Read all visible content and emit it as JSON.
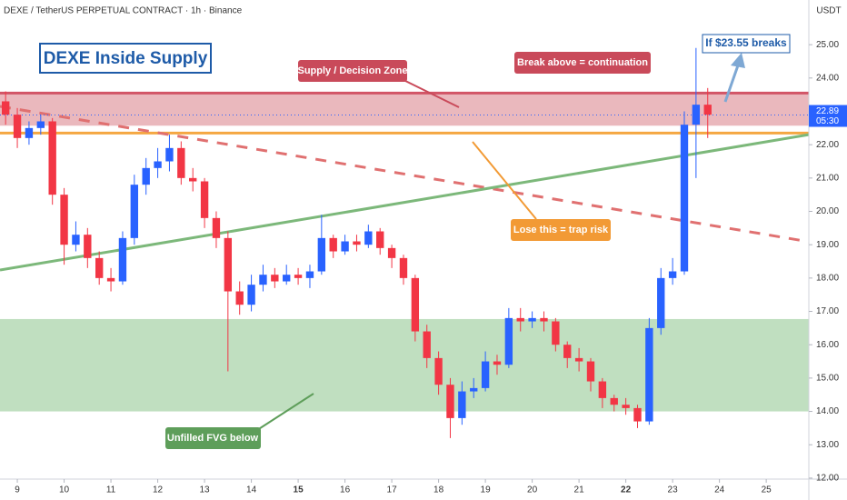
{
  "chart_data": {
    "type": "candlestick",
    "title": "DEXE / TetherUS PERPETUAL CONTRACT · 1h · Binance",
    "currency": "USDT",
    "annotations": [
      "DEXE Inside Supply",
      "Supply / Decision Zone",
      "Break above = continuation",
      "Lose this = trap risk",
      "Unfilled FVG below",
      "If $23.55 breaks"
    ],
    "x": [
      8.75,
      9,
      9.25,
      9.5,
      9.75,
      10,
      10.25,
      10.5,
      10.75,
      11,
      11.25,
      11.5,
      11.75,
      12,
      12.25,
      12.5,
      12.75,
      13,
      13.25,
      13.5,
      13.75,
      14,
      14.25,
      14.5,
      14.75,
      15,
      15.25,
      15.5,
      15.75,
      16,
      16.25,
      16.5,
      16.75,
      17,
      17.25,
      17.5,
      17.75,
      18,
      18.25,
      18.5,
      18.75,
      19,
      19.25,
      19.5,
      19.75,
      20,
      20.25,
      20.5,
      20.75,
      21,
      21.25,
      21.5,
      21.75,
      22,
      22.25,
      22.5,
      22.75,
      23,
      23.25,
      23.5,
      23.75
    ],
    "open": [
      23.3,
      22.9,
      22.2,
      22.5,
      22.7,
      20.5,
      19.0,
      19.3,
      18.6,
      18.0,
      17.9,
      19.2,
      20.8,
      21.3,
      21.5,
      21.9,
      21.0,
      20.9,
      19.8,
      19.2,
      17.6,
      17.2,
      17.8,
      18.1,
      17.9,
      18.1,
      18.0,
      18.2,
      19.2,
      18.8,
      19.1,
      19.0,
      19.4,
      18.9,
      18.6,
      18.0,
      16.4,
      15.6,
      14.8,
      13.8,
      14.6,
      14.7,
      15.5,
      15.4,
      16.8,
      16.7,
      16.8,
      16.7,
      16.0,
      15.6,
      15.5,
      14.9,
      14.4,
      14.2,
      14.1,
      13.7,
      16.5,
      18.0,
      18.2,
      22.6,
      23.2
    ],
    "high": [
      23.6,
      23.1,
      22.7,
      22.9,
      22.8,
      20.7,
      19.7,
      19.5,
      18.8,
      18.3,
      19.4,
      21.1,
      21.6,
      21.9,
      22.3,
      22.1,
      21.3,
      21.0,
      20.0,
      19.4,
      17.9,
      18.1,
      18.4,
      18.3,
      18.4,
      18.3,
      18.4,
      19.9,
      19.3,
      19.3,
      19.3,
      19.6,
      19.5,
      19.0,
      18.7,
      18.1,
      16.6,
      15.8,
      15.0,
      14.9,
      15.0,
      15.8,
      15.7,
      17.1,
      17.1,
      17.0,
      17.0,
      16.8,
      16.1,
      15.9,
      15.6,
      15.0,
      14.5,
      14.4,
      14.2,
      16.8,
      18.3,
      18.6,
      23.0,
      24.9,
      23.7
    ],
    "low": [
      22.6,
      21.9,
      22.0,
      22.3,
      20.2,
      18.4,
      18.8,
      18.3,
      17.8,
      17.6,
      17.8,
      19.0,
      20.5,
      21.0,
      21.2,
      20.8,
      20.6,
      19.5,
      18.9,
      15.2,
      16.9,
      17.0,
      17.6,
      17.7,
      17.8,
      17.8,
      17.7,
      18.1,
      18.6,
      18.7,
      18.8,
      18.9,
      18.7,
      18.3,
      17.8,
      16.1,
      15.3,
      14.5,
      13.2,
      13.6,
      14.4,
      14.6,
      15.1,
      15.3,
      16.4,
      16.5,
      16.4,
      15.8,
      15.3,
      15.2,
      14.6,
      14.1,
      14.0,
      13.9,
      13.5,
      13.6,
      16.3,
      17.8,
      18.1,
      21.0,
      22.2
    ],
    "close": [
      22.9,
      22.2,
      22.5,
      22.7,
      20.5,
      19.0,
      19.3,
      18.6,
      18.0,
      17.9,
      19.2,
      20.8,
      21.3,
      21.5,
      21.9,
      21.0,
      20.9,
      19.8,
      19.2,
      17.6,
      17.2,
      17.8,
      18.1,
      17.9,
      18.1,
      18.0,
      18.2,
      19.2,
      18.8,
      19.1,
      19.0,
      19.4,
      18.9,
      18.6,
      18.0,
      16.4,
      15.6,
      14.8,
      13.8,
      14.6,
      14.7,
      15.5,
      15.4,
      16.8,
      16.7,
      16.8,
      16.7,
      16.0,
      15.6,
      15.5,
      14.9,
      14.4,
      14.2,
      14.1,
      13.7,
      16.5,
      18.0,
      18.2,
      22.6,
      23.2,
      22.9
    ],
    "up_color": "#2962ff",
    "down_color": "#f23645",
    "last_price": 22.89,
    "countdown": "05:30",
    "zones": [
      {
        "range": [
          22.57,
          23.56
        ],
        "color": "#e8b0b6"
      },
      {
        "range": [
          14.0,
          16.77
        ],
        "color": "#b9dcb9"
      }
    ],
    "levels": [
      {
        "value": 23.55,
        "color": "#d25566"
      },
      {
        "value": 22.35,
        "color": "#f5a742"
      }
    ],
    "trendlines": [
      {
        "x": [
          8.63,
          25.91
        ],
        "y": [
          23.15,
          19.09
        ],
        "color": "#e07070",
        "dashed": true
      },
      {
        "x": [
          8.63,
          25.91
        ],
        "y": [
          18.24,
          22.3
        ],
        "color": "#7cb87a",
        "dashed": false
      }
    ],
    "xlim": [
      8.63,
      25.91
    ],
    "ylim": [
      11.97,
      26.34
    ],
    "xticks": [
      9,
      10,
      11,
      12,
      13,
      14,
      15,
      16,
      17,
      18,
      19,
      20,
      21,
      22,
      23,
      24,
      25
    ],
    "yticks": [
      {
        "value": 12,
        "label": "12.00"
      },
      {
        "value": 13,
        "label": "13.00"
      },
      {
        "value": 14,
        "label": "14.00"
      },
      {
        "value": 15,
        "label": "15.00"
      },
      {
        "value": 16,
        "label": "16.00"
      },
      {
        "value": 17,
        "label": "17.00"
      },
      {
        "value": 18,
        "label": "18.00"
      },
      {
        "value": 19,
        "label": "19.00"
      },
      {
        "value": 20,
        "label": "20.00"
      },
      {
        "value": 21,
        "label": "21.00"
      },
      {
        "value": 22,
        "label": "22.00"
      },
      {
        "value": 23,
        "label": "23.00"
      },
      {
        "value": 24,
        "label": "24.00"
      },
      {
        "value": 25,
        "label": "25.00"
      }
    ]
  }
}
